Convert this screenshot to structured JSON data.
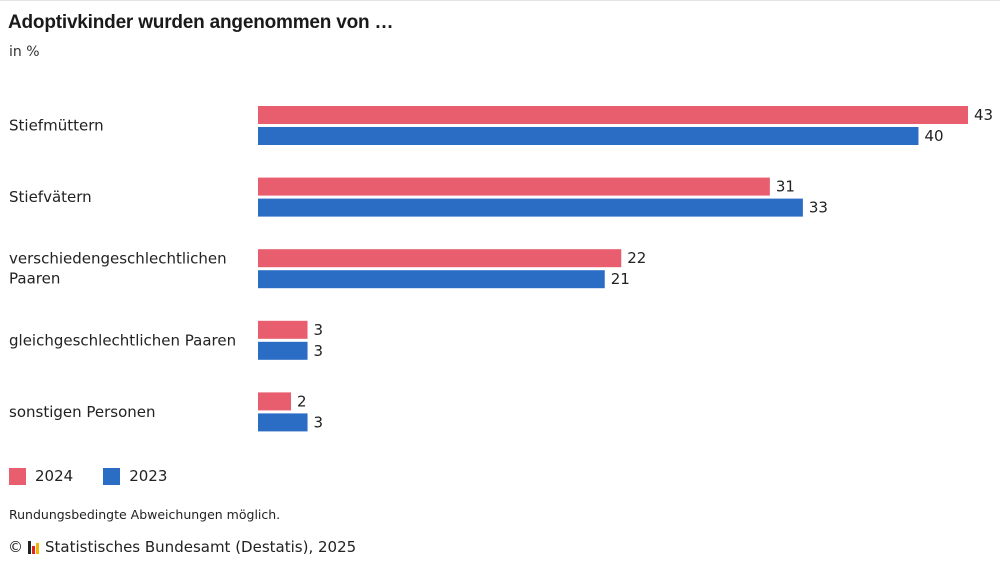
{
  "title": "Adoptivkinder wurden angenommen von …",
  "subtitle": "in %",
  "chart_data": {
    "type": "bar",
    "orientation": "horizontal",
    "categories": [
      [
        "Stiefmüttern"
      ],
      [
        "Stiefvätern"
      ],
      [
        "verschiedengeschlechtlichen",
        "Paaren"
      ],
      [
        "gleichgeschlechtlichen Paaren"
      ],
      [
        "sonstigen Personen"
      ]
    ],
    "series": [
      {
        "name": "2024",
        "color": "#e85e6e",
        "values": [
          43,
          31,
          22,
          3,
          2
        ]
      },
      {
        "name": "2023",
        "color": "#2b6cc4",
        "values": [
          40,
          33,
          21,
          3,
          3
        ]
      }
    ],
    "xlim": [
      0,
      43
    ],
    "grid": false,
    "legend_position": "bottom-left"
  },
  "legend": [
    {
      "label": "2024",
      "color": "#e85e6e"
    },
    {
      "label": "2023",
      "color": "#2b6cc4"
    }
  ],
  "note": "Rundungsbedingte Abweichungen möglich.",
  "source": {
    "copyright_symbol": "©",
    "text": "Statistisches Bundesamt (Destatis), 2025",
    "logo_colors": [
      "#222222",
      "#e5231b",
      "#f2b705"
    ]
  }
}
